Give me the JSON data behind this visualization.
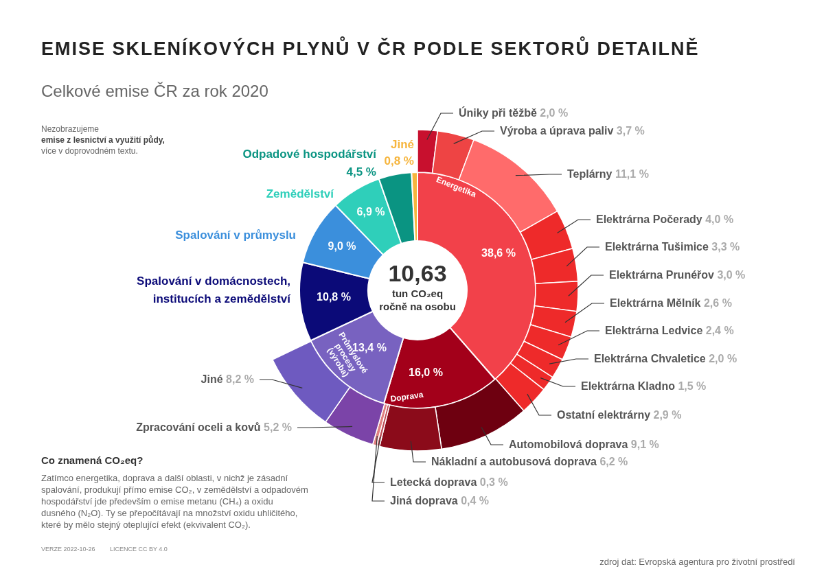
{
  "chart_data": [
    {
      "type": "donut",
      "title": "EMISE SKLENÍKOVÝCH PLYNŮ V ČR PODLE SEKTORŮ DETAILNĚ",
      "subtitle": "Celkové emise ČR za rok 2020",
      "categories": [
        "Energetika",
        "Doprava",
        "Průmyslové procesy (výroba)",
        "Spalování v domácnostech, institucích a zemědělství",
        "Spalování v průmyslu",
        "Zemědělství",
        "Odpadové hospodářství",
        "Jiné"
      ],
      "values": [
        38.6,
        16.0,
        13.4,
        10.8,
        9.0,
        6.9,
        4.5,
        0.8
      ],
      "colors": [
        "#f2414a",
        "#a3001a",
        "#7862c0",
        "#0b0a78",
        "#3b8fdc",
        "#2fcfba",
        "#0a9482",
        "#f6b53d"
      ],
      "value_labels": [
        "38,6 %",
        "16,0 %",
        "13,4 %",
        "10,8 %",
        "9,0 %",
        "6,9 %",
        "4,5 %",
        "0,8 %"
      ],
      "annotations": [
        "10,63",
        "tun CO₂eq",
        "ročně na osobu",
        "Nezobrazujeme",
        "emise z lesnictví a využití půdy,",
        "více v doprovodném textu.",
        "Co znamená CO₂eq?",
        "Zatímco energetika, doprava a další oblasti, v nichž je zásadní",
        "spalování, produkují přímo emise CO₂, v zemědělství a odpadovém",
        "hospodářství jde především o emise metanu (CH₄) a oxidu",
        "dusného (N₂O). Ty se přepočítávají na množství oxidu uhličitého,",
        "které by mělo stejný oteplující efekt (ekvivalent CO₂).",
        "VERZE 2022-10-26",
        "LICENCE CC BY 4.0",
        "zdroj dat: Evropská agentura pro životní prostředí"
      ]
    },
    {
      "type": "donut",
      "categories": [
        "Úniky při těžbě",
        "Výroba a úprava paliv",
        "Teplárny",
        "Elektrárna Počerady",
        "Elektrárna Tušimice",
        "Elektrárna Prunéřov",
        "Elektrárna Mělník",
        "Elektrárna Ledvice",
        "Elektrárna Chvaletice",
        "Elektrárna Kladno",
        "Ostatní elektrárny",
        "Automobilová doprava",
        "Nákladní a autobusová doprava",
        "Letecká doprava",
        "Jiná doprava",
        "Zpracování oceli a kovů",
        "Jiné"
      ],
      "values": [
        2.0,
        3.7,
        11.1,
        4.0,
        3.3,
        3.0,
        2.6,
        2.4,
        2.0,
        1.5,
        2.9,
        9.1,
        6.2,
        0.3,
        0.4,
        5.2,
        8.2
      ],
      "colors": [
        "#c8102e",
        "#ee4444",
        "#ff6b6b",
        "#ee2a2a",
        "#ee2a2a",
        "#ee2a2a",
        "#ee2a2a",
        "#ee2a2a",
        "#ee2a2a",
        "#ee2a2a",
        "#ee2a2a",
        "#6e0010",
        "#8b0b1a",
        "#c0505a",
        "#e08080",
        "#7b44a8",
        "#6e5ac0"
      ],
      "value_labels": [
        "2,0 %",
        "3,7 %",
        "11,1 %",
        "4,0 %",
        "3,3 %",
        "3,0 %",
        "2,6 %",
        "2,4 %",
        "2,0 %",
        "1,5 %",
        "2,9 %",
        "9,1 %",
        "6,2 %",
        "0,3 %",
        "0,4 %",
        "5,2 %",
        "8,2 %"
      ]
    }
  ]
}
